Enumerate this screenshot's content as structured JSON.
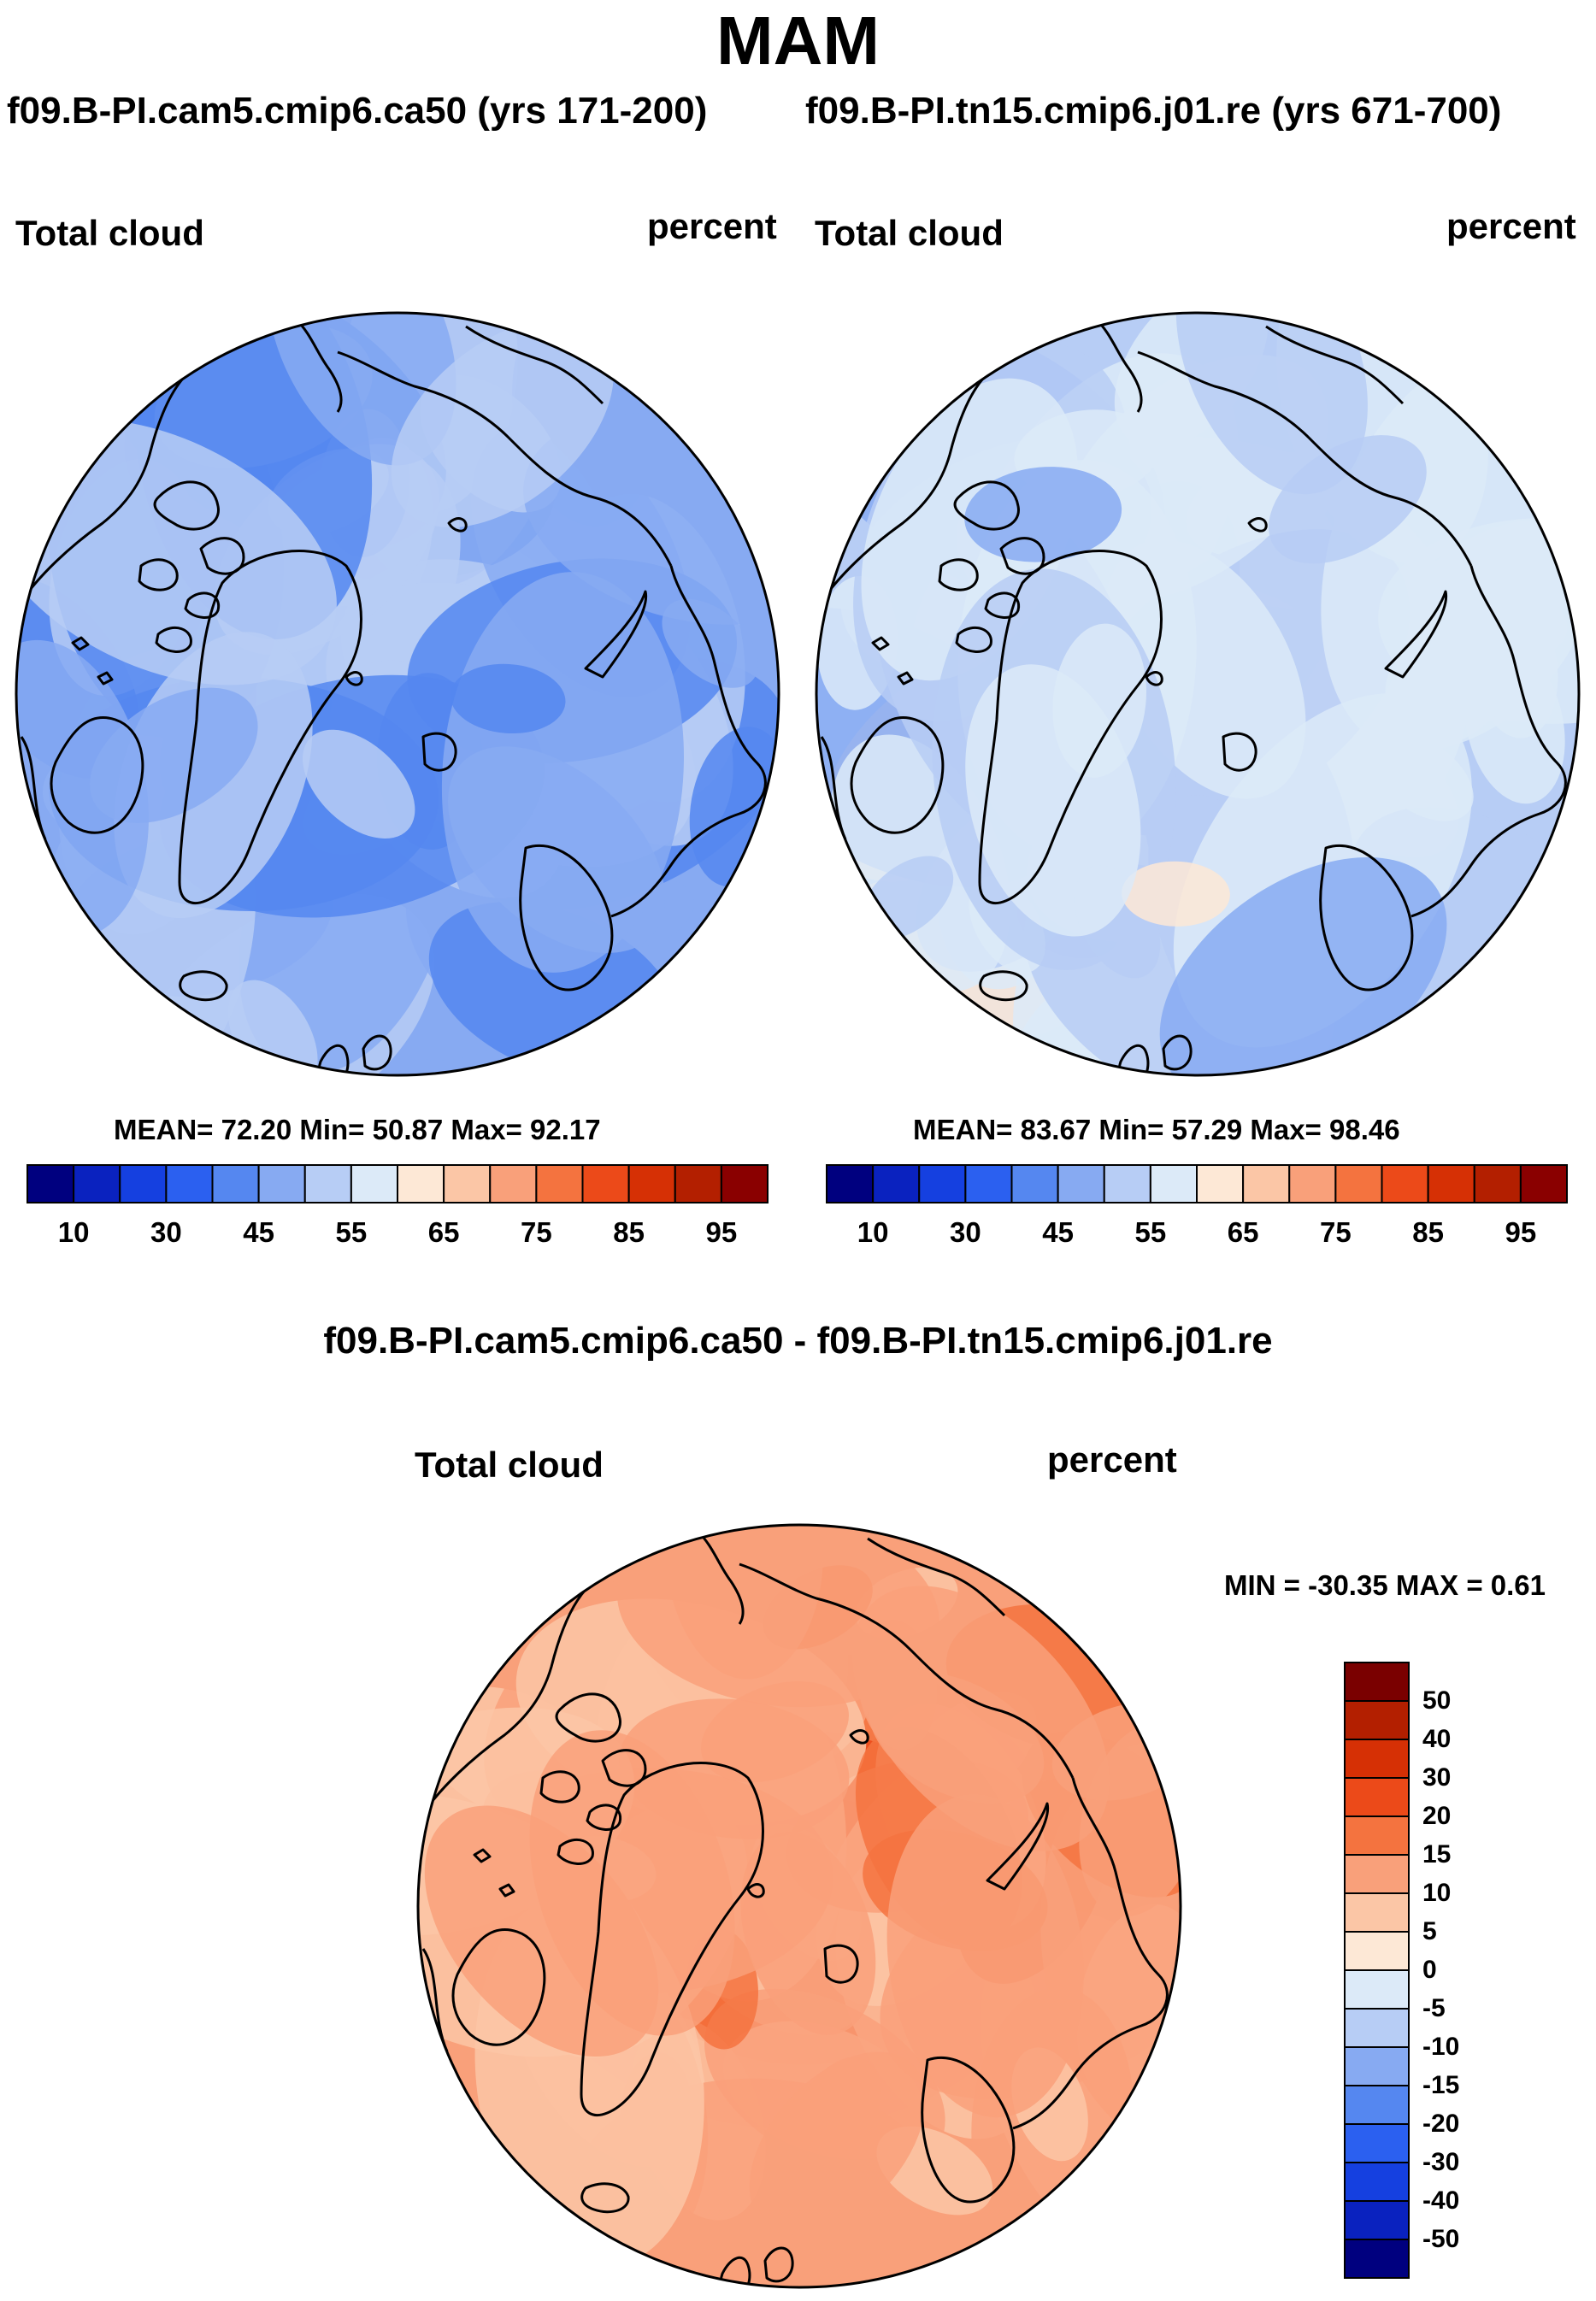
{
  "title": "MAM",
  "panels": [
    {
      "run_title": "f09.B-PI.cam5.cmip6.ca50 (yrs 171-200)",
      "left_label": "Total cloud",
      "right_label": "percent",
      "stats": "MEAN=  72.20  Min=  50.87  Max=  92.17",
      "colorbar_ticks": [
        "10",
        "30",
        "45",
        "55",
        "65",
        "75",
        "85",
        "95"
      ]
    },
    {
      "run_title": "f09.B-PI.tn15.cmip6.j01.re (yrs 671-700)",
      "left_label": "Total cloud",
      "right_label": "percent",
      "stats": "MEAN=  83.67  Min=  57.29  Max=  98.46",
      "colorbar_ticks": [
        "10",
        "30",
        "45",
        "55",
        "65",
        "75",
        "85",
        "95"
      ]
    }
  ],
  "diff_panel": {
    "title": "f09.B-PI.cam5.cmip6.ca50 - f09.B-PI.tn15.cmip6.j01.re",
    "left_label": "Total cloud",
    "right_label": "percent",
    "minmax": "MIN = -30.35 MAX =   0.61",
    "colorbar_ticks": [
      "50",
      "40",
      "30",
      "20",
      "15",
      "10",
      "5",
      "0",
      "-5",
      "-10",
      "-15",
      "-20",
      "-30",
      "-40",
      "-50"
    ]
  },
  "palettes": {
    "abs": [
      "#00007f",
      "#0a22bf",
      "#1540e0",
      "#2b60f0",
      "#5587f0",
      "#87aaf2",
      "#b7cdf5",
      "#dceaf8",
      "#fde8d6",
      "#fbc6a6",
      "#f9a07a",
      "#f4733f",
      "#ec4a19",
      "#d63005",
      "#b31f00",
      "#8a0000"
    ],
    "diff": [
      "#7a0000",
      "#b31f00",
      "#d63005",
      "#ec4a19",
      "#f4733f",
      "#f9a07a",
      "#fbc6a6",
      "#fde8d6",
      "#dceaf8",
      "#b7cdf5",
      "#87aaf2",
      "#5587f0",
      "#2b60f0",
      "#1540e0",
      "#0a22bf",
      "#00007f"
    ]
  },
  "chart_data": [
    {
      "type": "heatmap",
      "projection": "north polar stereographic",
      "title": "f09.B-PI.cam5.cmip6.ca50 (yrs 171-200)",
      "variable": "Total cloud",
      "units": "percent",
      "mean": 72.2,
      "min": 50.87,
      "max": 92.17,
      "contour_levels": [
        10,
        30,
        45,
        55,
        65,
        75,
        85,
        95
      ],
      "base_value": 72
    },
    {
      "type": "heatmap",
      "projection": "north polar stereographic",
      "title": "f09.B-PI.tn15.cmip6.j01.re (yrs 671-700)",
      "variable": "Total cloud",
      "units": "percent",
      "mean": 83.67,
      "min": 57.29,
      "max": 98.46,
      "contour_levels": [
        10,
        30,
        45,
        55,
        65,
        75,
        85,
        95
      ],
      "base_value": 84
    },
    {
      "type": "heatmap",
      "projection": "north polar stereographic",
      "title": "f09.B-PI.cam5.cmip6.ca50 - f09.B-PI.tn15.cmip6.j01.re",
      "variable": "Total cloud",
      "units": "percent",
      "min": -30.35,
      "max": 0.61,
      "contour_levels": [
        -50,
        -40,
        -30,
        -20,
        -15,
        -10,
        -5,
        0,
        5,
        10,
        15,
        20,
        30,
        40,
        50
      ],
      "base_value": -11
    }
  ]
}
